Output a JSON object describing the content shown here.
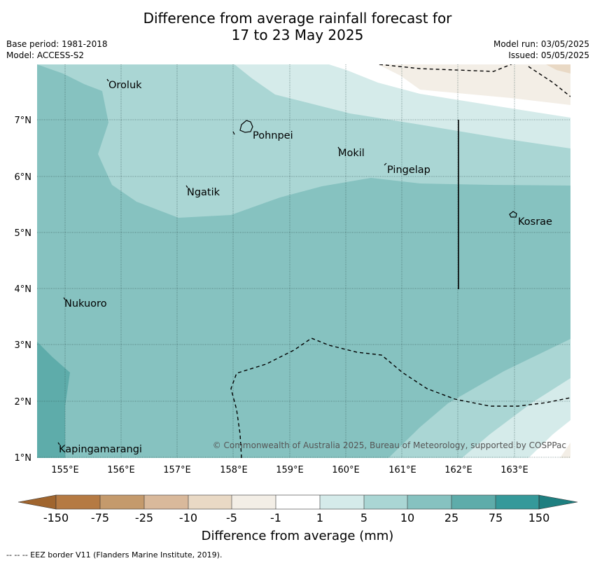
{
  "title_line1": "Difference from average rainfall forecast for",
  "title_line2": "17 to 23 May 2025",
  "meta_left": [
    "Base period: 1981-2018",
    "Model: ACCESS-S2"
  ],
  "meta_right": [
    "Model run: 03/05/2025",
    "Issued: 05/05/2025"
  ],
  "lon_ticks": [
    "155°E",
    "156°E",
    "157°E",
    "158°E",
    "159°E",
    "160°E",
    "161°E",
    "162°E",
    "163°E"
  ],
  "lat_ticks": [
    "7°N",
    "6°N",
    "5°N",
    "4°N",
    "3°N",
    "2°N",
    "1°N"
  ],
  "places": [
    {
      "name": "Oroluk"
    },
    {
      "name": "Pohnpei"
    },
    {
      "name": "Mokil"
    },
    {
      "name": "Pingelap"
    },
    {
      "name": "Ngatik"
    },
    {
      "name": "Kosrae"
    },
    {
      "name": "Nukuoro"
    },
    {
      "name": "Kapingamarangi"
    }
  ],
  "credit": "© Commonwealth of Australia 2025, Bureau of Meteorology, supported by COSPPac",
  "colorbar": {
    "labels": [
      "-150",
      "-75",
      "-25",
      "-10",
      "-5",
      "-1",
      "1",
      "5",
      "10",
      "25",
      "75",
      "150"
    ],
    "colors": [
      "#a0652e",
      "#b57a43",
      "#c49a6c",
      "#d9b99b",
      "#e9d9c5",
      "#f3eee6",
      "#ffffff",
      "#d5ebea",
      "#aad6d4",
      "#86c2c0",
      "#5eacaa",
      "#35999a",
      "#1e7f80"
    ],
    "title": "Difference from average (mm)"
  },
  "eez_note": "--  --  -- EEZ border V11 (Flanders Marine Institute, 2019)."
}
